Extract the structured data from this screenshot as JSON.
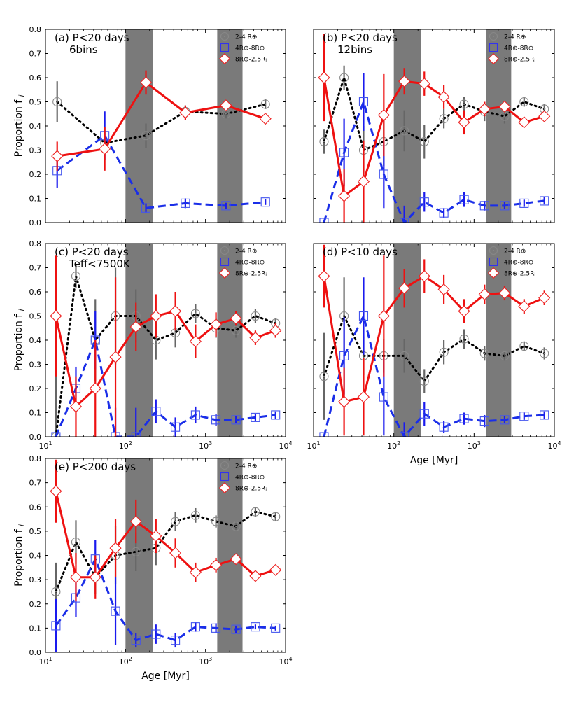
{
  "figure": {
    "ylabel": "Proportion f",
    "ylabel_sub": "i",
    "xlabel": "Age [Myr]"
  },
  "axes_common": {
    "xscale": "log",
    "xlim": [
      10,
      10000
    ],
    "ylim": [
      0,
      0.8
    ],
    "xticks": [
      {
        "v": 10,
        "base": "10",
        "exp": "1"
      },
      {
        "v": 100,
        "base": "10",
        "exp": "2"
      },
      {
        "v": 1000,
        "base": "10",
        "exp": "3"
      },
      {
        "v": 10000,
        "base": "10",
        "exp": "4"
      }
    ],
    "yticks": [
      {
        "v": 0.0,
        "label": "0.0"
      },
      {
        "v": 0.1,
        "label": "0.1"
      },
      {
        "v": 0.2,
        "label": "0.2"
      },
      {
        "v": 0.3,
        "label": "0.3"
      },
      {
        "v": 0.4,
        "label": "0.4"
      },
      {
        "v": 0.5,
        "label": "0.5"
      },
      {
        "v": 0.6,
        "label": "0.6"
      },
      {
        "v": 0.7,
        "label": "0.7"
      },
      {
        "v": 0.8,
        "label": "0.8"
      }
    ],
    "shaded_bands": [
      [
        100,
        220
      ],
      [
        1400,
        2900
      ]
    ],
    "band_color": "#7a7a7a",
    "legend": [
      {
        "label": "2-4 R⊕",
        "color": "#888888",
        "marker": "circle"
      },
      {
        "label": "4R⊕-8R⊕",
        "color": "#3333ee",
        "marker": "square"
      },
      {
        "label": "8R⊕-2.5Rⱼ",
        "color": "#ee2222",
        "marker": "diamond"
      }
    ],
    "series_style": [
      {
        "line": "#000000",
        "dash": "2,5",
        "err": "#666666",
        "marker": "circle",
        "mcolor": "#888888"
      },
      {
        "line": "#1a2ee8",
        "dash": "11,6",
        "err": "#1a1aee",
        "marker": "square",
        "mcolor": "#4455ee"
      },
      {
        "line": "#ee1111",
        "dash": "",
        "err": "#ee1111",
        "marker": "diamond",
        "mcolor": "#ee2222"
      }
    ]
  },
  "chart_data": [
    {
      "type": "line",
      "panel": "a",
      "title_lines": [
        "(a) P<20 days",
        "6bins"
      ],
      "show_ylabel": true,
      "show_xlabel": false,
      "show_xticklabels": false,
      "series": [
        {
          "name": "2-4 R⊕",
          "x": [
            14,
            55,
            180,
            560,
            1800,
            5600
          ],
          "y": [
            0.5,
            0.33,
            0.36,
            0.46,
            0.45,
            0.49
          ],
          "err": [
            0.085,
            0.03,
            0.05,
            0.025,
            0.02,
            0.02
          ]
        },
        {
          "name": "4R⊕-8R⊕",
          "x": [
            14,
            55,
            180,
            560,
            1800,
            5600
          ],
          "y": [
            0.215,
            0.36,
            0.06,
            0.08,
            0.07,
            0.085
          ],
          "err": [
            0.07,
            0.1,
            0.02,
            0.02,
            0.012,
            0.012
          ]
        },
        {
          "name": "8R⊕-2.5Rⱼ",
          "x": [
            14,
            55,
            180,
            560,
            1800,
            5600
          ],
          "y": [
            0.275,
            0.305,
            0.58,
            0.455,
            0.485,
            0.43
          ],
          "err": [
            0.06,
            0.09,
            0.05,
            0.03,
            0.02,
            0.01
          ]
        }
      ]
    },
    {
      "type": "line",
      "panel": "b",
      "title_lines": [
        "(b) P<20 days",
        "12bins"
      ],
      "show_ylabel": false,
      "show_xlabel": false,
      "show_xticklabels": false,
      "series": [
        {
          "name": "2-4 R⊕",
          "x": [
            13.5,
            24,
            42,
            75,
            135,
            240,
            420,
            750,
            1350,
            2400,
            4200,
            7500
          ],
          "y": [
            0.335,
            0.6,
            0.3,
            0.335,
            0.38,
            0.335,
            0.43,
            0.49,
            0.46,
            0.44,
            0.5,
            0.47
          ],
          "err": [
            0.05,
            0.05,
            0.1,
            0.1,
            0.085,
            0.07,
            0.04,
            0.03,
            0.04,
            0.03,
            0.02,
            0.02
          ]
        },
        {
          "name": "4R⊕-8R⊕",
          "x": [
            13.5,
            24,
            42,
            75,
            135,
            240,
            420,
            750,
            1350,
            2400,
            4200,
            7500
          ],
          "y": [
            0.0,
            0.29,
            0.5,
            0.2,
            0.0,
            0.085,
            0.04,
            0.095,
            0.07,
            0.07,
            0.08,
            0.09
          ],
          "err": [
            0.0,
            0.14,
            0.12,
            0.14,
            0.07,
            0.04,
            0.02,
            0.03,
            0.02,
            0.015,
            0.015,
            0.015
          ]
        },
        {
          "name": "8R⊕-2.5Rⱼ",
          "x": [
            13.5,
            24,
            42,
            75,
            135,
            240,
            420,
            750,
            1350,
            2400,
            4200,
            7500
          ],
          "y": [
            0.6,
            0.11,
            0.17,
            0.445,
            0.585,
            0.575,
            0.52,
            0.415,
            0.47,
            0.48,
            0.415,
            0.44
          ],
          "err": [
            0.18,
            0.11,
            0.17,
            0.17,
            0.055,
            0.05,
            0.05,
            0.05,
            0.03,
            0.02,
            0.02,
            0.02
          ]
        }
      ]
    },
    {
      "type": "line",
      "panel": "c",
      "title_lines": [
        "(c) P<20 days",
        "Teff<7500K"
      ],
      "show_ylabel": true,
      "show_xlabel": false,
      "show_xticklabels": true,
      "series": [
        {
          "name": "2-4 R⊕",
          "x": [
            13.5,
            24,
            42,
            75,
            135,
            240,
            420,
            750,
            1350,
            2400,
            4200,
            7500
          ],
          "y": [
            0.0,
            0.665,
            0.4,
            0.5,
            0.5,
            0.4,
            0.43,
            0.51,
            0.45,
            0.44,
            0.5,
            0.47
          ],
          "err": [
            0.33,
            0.05,
            0.17,
            0.2,
            0.11,
            0.08,
            0.06,
            0.04,
            0.04,
            0.03,
            0.03,
            0.02
          ]
        },
        {
          "name": "4R⊕-8R⊕",
          "x": [
            13.5,
            24,
            42,
            75,
            135,
            240,
            420,
            750,
            1350,
            2400,
            4200,
            7500
          ],
          "y": [
            0.0,
            0.2,
            0.4,
            0.0,
            0.0,
            0.105,
            0.04,
            0.09,
            0.07,
            0.07,
            0.08,
            0.09
          ],
          "err": [
            0.0,
            0.09,
            0.12,
            0.12,
            0.12,
            0.05,
            0.04,
            0.035,
            0.025,
            0.015,
            0.015,
            0.015
          ]
        },
        {
          "name": "8R⊕-2.5Rⱼ",
          "x": [
            13.5,
            24,
            42,
            75,
            135,
            240,
            420,
            750,
            1350,
            2400,
            4200,
            7500
          ],
          "y": [
            0.5,
            0.125,
            0.2,
            0.33,
            0.455,
            0.5,
            0.52,
            0.395,
            0.465,
            0.49,
            0.41,
            0.44
          ],
          "err": [
            0.25,
            0.125,
            0.2,
            0.33,
            0.1,
            0.09,
            0.08,
            0.07,
            0.05,
            0.03,
            0.03,
            0.03
          ]
        }
      ]
    },
    {
      "type": "line",
      "panel": "d",
      "title_lines": [
        "(d) P<10 days"
      ],
      "show_ylabel": false,
      "show_xlabel": true,
      "show_xticklabels": true,
      "series": [
        {
          "name": "2-4 R⊕",
          "x": [
            13.5,
            24,
            42,
            75,
            135,
            240,
            420,
            750,
            1350,
            2400,
            4200,
            7500
          ],
          "y": [
            0.25,
            0.5,
            0.335,
            0.335,
            0.335,
            0.23,
            0.35,
            0.405,
            0.345,
            0.335,
            0.375,
            0.345
          ],
          "err": [
            0.18,
            0.16,
            0.08,
            0.07,
            0.07,
            0.05,
            0.05,
            0.04,
            0.03,
            0.02,
            0.02,
            0.025
          ]
        },
        {
          "name": "4R⊕-8R⊕",
          "x": [
            13.5,
            24,
            42,
            75,
            135,
            240,
            420,
            750,
            1350,
            2400,
            4200,
            7500
          ],
          "y": [
            0.0,
            0.335,
            0.5,
            0.165,
            0.0,
            0.095,
            0.04,
            0.075,
            0.065,
            0.07,
            0.085,
            0.09
          ],
          "err": [
            0.0,
            0.16,
            0.16,
            0.16,
            0.06,
            0.05,
            0.025,
            0.025,
            0.025,
            0.015,
            0.015,
            0.015
          ]
        },
        {
          "name": "8R⊕-2.5Rⱼ",
          "x": [
            13.5,
            24,
            42,
            75,
            135,
            240,
            420,
            750,
            1350,
            2400,
            4200,
            7500
          ],
          "y": [
            0.665,
            0.145,
            0.165,
            0.5,
            0.615,
            0.665,
            0.61,
            0.52,
            0.59,
            0.595,
            0.54,
            0.575
          ],
          "err": [
            0.13,
            0.14,
            0.16,
            0.25,
            0.08,
            0.07,
            0.06,
            0.05,
            0.04,
            0.03,
            0.03,
            0.03
          ]
        }
      ]
    },
    {
      "type": "line",
      "panel": "e",
      "title_lines": [
        "(e) P<200 days"
      ],
      "show_ylabel": true,
      "show_xlabel": true,
      "show_xticklabels": true,
      "series": [
        {
          "name": "2-4 R⊕",
          "x": [
            13.5,
            24,
            42,
            75,
            135,
            240,
            420,
            750,
            1350,
            2400,
            4200,
            7500
          ],
          "y": [
            0.25,
            0.455,
            0.31,
            0.4,
            0.415,
            0.43,
            0.54,
            0.565,
            0.54,
            0.52,
            0.58,
            0.56
          ],
          "err": [
            0.12,
            0.09,
            0.07,
            0.12,
            0.08,
            0.07,
            0.04,
            0.03,
            0.025,
            0.02,
            0.02,
            0.02
          ]
        },
        {
          "name": "4R⊕-8R⊕",
          "x": [
            13.5,
            24,
            42,
            75,
            135,
            240,
            420,
            750,
            1350,
            2400,
            4200,
            7500
          ],
          "y": [
            0.11,
            0.225,
            0.385,
            0.17,
            0.05,
            0.075,
            0.05,
            0.105,
            0.1,
            0.095,
            0.105,
            0.1
          ],
          "err": [
            0.11,
            0.08,
            0.08,
            0.14,
            0.03,
            0.04,
            0.03,
            0.02,
            0.02,
            0.015,
            0.01,
            0.01
          ]
        },
        {
          "name": "8R⊕-2.5Rⱼ",
          "x": [
            13.5,
            24,
            42,
            75,
            135,
            240,
            420,
            750,
            1350,
            2400,
            4200,
            7500
          ],
          "y": [
            0.665,
            0.31,
            0.31,
            0.43,
            0.54,
            0.48,
            0.41,
            0.33,
            0.36,
            0.385,
            0.315,
            0.34
          ],
          "err": [
            0.13,
            0.1,
            0.09,
            0.12,
            0.09,
            0.07,
            0.06,
            0.04,
            0.03,
            0.02,
            0.01,
            0.01
          ]
        }
      ]
    }
  ]
}
